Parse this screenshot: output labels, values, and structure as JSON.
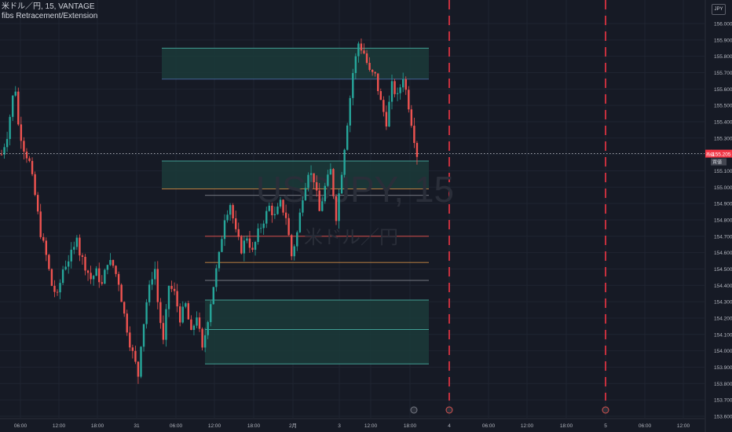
{
  "header": {
    "title": "米ドル／円, 15, VANTAGE",
    "indicator": "fibs Retracement/Extension"
  },
  "currency_button": "JPY",
  "watermark": {
    "symbol": "USDJPY, 15",
    "name": "米ドル／円"
  },
  "price_tag": {
    "value": "155.205",
    "side": "売値",
    "bid_label": "買値"
  },
  "colors": {
    "background": "#161a25",
    "up": "#26a69a",
    "down": "#ef5350",
    "grid": "#1f2431",
    "zone_fill": "#1b3b3a",
    "session_line": "#f23645"
  },
  "chart_data": {
    "type": "candlestick",
    "yaxis": {
      "ticks": [
        "156.000",
        "155.900",
        "155.800",
        "155.700",
        "155.600",
        "155.500",
        "155.400",
        "155.300",
        "155.200",
        "155.100",
        "155.000",
        "154.900",
        "154.800",
        "154.700",
        "154.600",
        "154.500",
        "154.400",
        "154.300",
        "154.200",
        "154.100",
        "154.000",
        "153.900",
        "153.800",
        "153.700",
        "153.600"
      ],
      "ylim": [
        153.6,
        156.06
      ]
    },
    "xaxis": {
      "ticks": [
        "06:00",
        "12:00",
        "18:00",
        "31",
        "06:00",
        "12:00",
        "18:00",
        "2月",
        "3",
        "12:00",
        "18:00",
        "4",
        "06:00",
        "12:00",
        "18:00",
        "5",
        "06:00",
        "12:00"
      ]
    },
    "last_price": 155.205,
    "zones": [
      {
        "low": 155.66,
        "high": 155.85,
        "start": "1月31日 12:00",
        "end": "2月3日 18:00"
      },
      {
        "low": 154.99,
        "high": 155.16,
        "start": "1月31日 12:00",
        "end": "2月3日 18:00"
      },
      {
        "low": 153.92,
        "high": 154.31,
        "start": "2月1日 00:00",
        "end": "2月3日 18:00"
      }
    ],
    "levels": [
      {
        "price": 154.95,
        "color": "#9598a1"
      },
      {
        "price": 154.7,
        "color": "#ef5350"
      },
      {
        "price": 154.54,
        "color": "#f0a04b"
      },
      {
        "price": 154.43,
        "color": "#9598a1"
      },
      {
        "price": 154.13,
        "color": "#4fc3b5"
      }
    ],
    "session_lines": [
      "4",
      "5"
    ],
    "price_path": [
      [
        0,
        155.2
      ],
      [
        2,
        155.32
      ],
      [
        4,
        155.55
      ],
      [
        5,
        155.6
      ],
      [
        6,
        155.38
      ],
      [
        8,
        155.24
      ],
      [
        10,
        155.15
      ],
      [
        12,
        154.95
      ],
      [
        14,
        154.72
      ],
      [
        16,
        154.58
      ],
      [
        18,
        154.4
      ],
      [
        20,
        154.33
      ],
      [
        22,
        154.5
      ],
      [
        24,
        154.56
      ],
      [
        26,
        154.62
      ],
      [
        27,
        154.72
      ],
      [
        28,
        154.6
      ],
      [
        30,
        154.52
      ],
      [
        32,
        154.44
      ],
      [
        34,
        154.48
      ],
      [
        36,
        154.4
      ],
      [
        38,
        154.55
      ],
      [
        40,
        154.52
      ],
      [
        42,
        154.42
      ],
      [
        44,
        154.22
      ],
      [
        46,
        154.05
      ],
      [
        48,
        153.92
      ],
      [
        49,
        153.85
      ],
      [
        50,
        154.05
      ],
      [
        52,
        154.3
      ],
      [
        54,
        154.46
      ],
      [
        55,
        154.5
      ],
      [
        56,
        154.3
      ],
      [
        58,
        154.05
      ],
      [
        60,
        154.4
      ],
      [
        62,
        154.35
      ],
      [
        64,
        154.2
      ],
      [
        66,
        154.28
      ],
      [
        68,
        154.1
      ],
      [
        70,
        154.22
      ],
      [
        72,
        154.0
      ],
      [
        74,
        154.2
      ],
      [
        76,
        154.4
      ],
      [
        78,
        154.58
      ],
      [
        80,
        154.82
      ],
      [
        82,
        154.9
      ],
      [
        84,
        154.72
      ],
      [
        86,
        154.62
      ],
      [
        88,
        154.7
      ],
      [
        90,
        154.6
      ],
      [
        92,
        154.72
      ],
      [
        94,
        154.8
      ],
      [
        96,
        154.88
      ],
      [
        98,
        154.82
      ],
      [
        100,
        154.9
      ],
      [
        102,
        154.82
      ],
      [
        104,
        154.58
      ],
      [
        106,
        154.72
      ],
      [
        108,
        154.95
      ],
      [
        110,
        155.1
      ],
      [
        112,
        155.05
      ],
      [
        114,
        154.85
      ],
      [
        116,
        155.0
      ],
      [
        118,
        155.1
      ],
      [
        120,
        154.82
      ],
      [
        122,
        155.1
      ],
      [
        124,
        155.4
      ],
      [
        126,
        155.7
      ],
      [
        128,
        155.88
      ],
      [
        130,
        155.82
      ],
      [
        132,
        155.7
      ],
      [
        134,
        155.68
      ],
      [
        136,
        155.52
      ],
      [
        138,
        155.4
      ],
      [
        140,
        155.62
      ],
      [
        142,
        155.55
      ],
      [
        144,
        155.68
      ],
      [
        146,
        155.5
      ],
      [
        148,
        155.3
      ],
      [
        149,
        155.2
      ]
    ]
  }
}
